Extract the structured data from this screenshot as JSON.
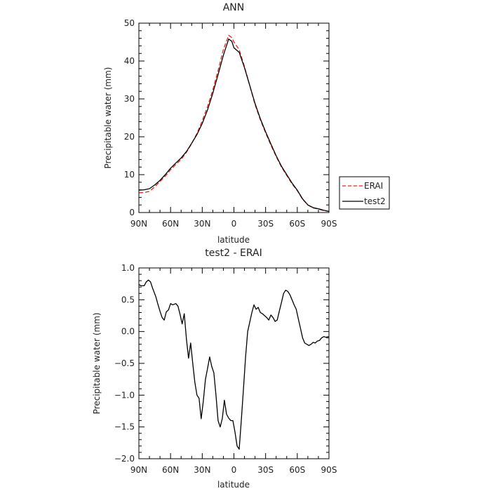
{
  "chart_data": [
    {
      "type": "line",
      "title": "ANN",
      "xlabel": "latitude",
      "ylabel": "Precipitable water (mm)",
      "xlim": [
        90,
        -90
      ],
      "ylim": [
        0,
        50
      ],
      "x_ticks": [
        90,
        60,
        30,
        0,
        -30,
        -60,
        -90
      ],
      "x_tick_labels": [
        "90N",
        "60N",
        "30N",
        "0",
        "30S",
        "60S",
        "90S"
      ],
      "y_ticks": [
        0,
        10,
        20,
        30,
        40,
        50
      ],
      "y_tick_labels": [
        "0",
        "10",
        "20",
        "30",
        "40",
        "50"
      ],
      "grid": false,
      "legend_position": "right",
      "series": [
        {
          "name": "ERAI",
          "color": "#e8251b",
          "dash": true,
          "x": [
            90,
            85,
            80,
            75,
            70,
            65,
            60,
            55,
            50,
            45,
            40,
            35,
            30,
            25,
            20,
            15,
            10,
            5,
            2,
            0,
            -5,
            -10,
            -15,
            -20,
            -25,
            -30,
            -35,
            -40,
            -45,
            -50,
            -55,
            -60,
            -65,
            -70,
            -75,
            -80,
            -85,
            -90
          ],
          "y": [
            5.2,
            5.3,
            5.6,
            6.8,
            8.2,
            9.6,
            11.3,
            12.7,
            14.0,
            15.9,
            18.2,
            20.9,
            24.2,
            28.0,
            32.4,
            37.5,
            43.0,
            46.8,
            46.2,
            45.0,
            43.0,
            38.5,
            33.5,
            28.5,
            24.5,
            21.0,
            17.8,
            14.8,
            12.0,
            9.8,
            7.6,
            5.8,
            3.5,
            2.0,
            1.2,
            0.9,
            0.5,
            0.3
          ]
        },
        {
          "name": "test2",
          "color": "#000000",
          "dash": false,
          "x": [
            90,
            85,
            80,
            75,
            70,
            65,
            60,
            55,
            50,
            45,
            40,
            35,
            30,
            25,
            20,
            15,
            10,
            5,
            2,
            0,
            -5,
            -10,
            -15,
            -20,
            -25,
            -30,
            -35,
            -40,
            -45,
            -50,
            -55,
            -60,
            -65,
            -70,
            -75,
            -80,
            -85,
            -90
          ],
          "y": [
            5.9,
            6.0,
            6.3,
            7.3,
            8.5,
            10.0,
            11.7,
            13.1,
            14.4,
            16.1,
            18.3,
            20.6,
            23.5,
            27.1,
            31.5,
            36.4,
            41.5,
            45.8,
            45.2,
            43.5,
            42.3,
            38.2,
            33.5,
            28.8,
            24.8,
            21.3,
            18.1,
            15.0,
            12.2,
            10.0,
            7.8,
            5.9,
            3.6,
            2.0,
            1.3,
            1.0,
            0.6,
            0.3
          ]
        }
      ]
    },
    {
      "type": "line",
      "title": "test2 - ERAI",
      "xlabel": "latitude",
      "ylabel": "Precipitable water (mm)",
      "xlim": [
        90,
        -90
      ],
      "ylim": [
        -2.0,
        1.0
      ],
      "x_ticks": [
        90,
        60,
        30,
        0,
        -30,
        -60,
        -90
      ],
      "x_tick_labels": [
        "90N",
        "60N",
        "30N",
        "0",
        "30S",
        "60S",
        "90S"
      ],
      "y_ticks": [
        -2.0,
        -1.5,
        -1.0,
        -0.5,
        0.0,
        0.5,
        1.0
      ],
      "y_tick_labels": [
        "−2.0",
        "−1.5",
        "−1.0",
        "−0.5",
        "0.0",
        "0.5",
        "1.0"
      ],
      "grid": false,
      "series": [
        {
          "color": "#000000",
          "dash": false,
          "x": [
            90,
            88,
            85,
            83,
            81,
            79,
            77,
            74,
            72,
            70,
            68,
            66,
            64,
            62,
            60,
            58,
            55,
            53,
            51,
            49,
            47,
            45,
            43,
            41,
            39,
            37,
            35,
            33,
            31,
            29,
            27,
            25,
            23,
            21,
            19,
            17,
            15,
            13,
            11,
            9,
            7,
            5,
            3,
            1,
            -1,
            -3,
            -5,
            -7,
            -9,
            -11,
            -13,
            -15,
            -17,
            -19,
            -21,
            -23,
            -25,
            -27,
            -29,
            -31,
            -33,
            -35,
            -37,
            -39,
            -41,
            -43,
            -45,
            -47,
            -49,
            -51,
            -53,
            -55,
            -57,
            -59,
            -61,
            -63,
            -65,
            -67,
            -69,
            -71,
            -73,
            -75,
            -77,
            -79,
            -81,
            -83,
            -85,
            -87,
            -90
          ],
          "y": [
            0.74,
            0.72,
            0.72,
            0.78,
            0.81,
            0.78,
            0.68,
            0.55,
            0.43,
            0.32,
            0.22,
            0.18,
            0.31,
            0.34,
            0.44,
            0.42,
            0.44,
            0.4,
            0.27,
            0.12,
            0.28,
            -0.12,
            -0.42,
            -0.18,
            -0.5,
            -0.8,
            -1.0,
            -1.05,
            -1.37,
            -1.1,
            -0.75,
            -0.58,
            -0.4,
            -0.55,
            -0.65,
            -1.0,
            -1.4,
            -1.5,
            -1.37,
            -1.08,
            -1.3,
            -1.36,
            -1.4,
            -1.4,
            -1.58,
            -1.8,
            -1.85,
            -1.4,
            -0.9,
            -0.4,
            0.0,
            0.15,
            0.3,
            0.42,
            0.35,
            0.38,
            0.3,
            0.28,
            0.25,
            0.22,
            0.18,
            0.26,
            0.22,
            0.16,
            0.18,
            0.32,
            0.46,
            0.6,
            0.65,
            0.63,
            0.58,
            0.5,
            0.42,
            0.35,
            0.2,
            0.05,
            -0.1,
            -0.18,
            -0.2,
            -0.22,
            -0.2,
            -0.17,
            -0.18,
            -0.15,
            -0.14,
            -0.1,
            -0.08,
            -0.09,
            -0.08
          ]
        }
      ]
    }
  ]
}
